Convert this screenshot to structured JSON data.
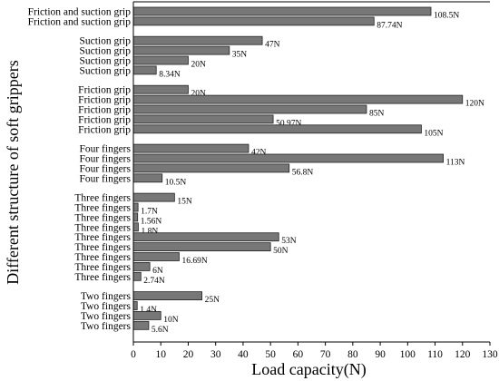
{
  "chart_data": {
    "type": "bar",
    "orientation": "horizontal",
    "xlabel": "Load capacity(N)",
    "ylabel": "Different structure of soft grippers",
    "xlim": [
      0,
      130
    ],
    "xticks": [
      0,
      10,
      20,
      30,
      40,
      50,
      60,
      70,
      80,
      90,
      100,
      110,
      120,
      130
    ],
    "grid": false,
    "bar_color": "#777777",
    "groups": [
      {
        "bars": [
          {
            "label": "Friction and suction grip",
            "value": 108.5,
            "value_label": "108.5N"
          },
          {
            "label": "Friction and suction grip",
            "value": 87.74,
            "value_label": "87.74N"
          }
        ]
      },
      {
        "bars": [
          {
            "label": "Suction grip",
            "value": 47,
            "value_label": "47N"
          },
          {
            "label": "Suction grip",
            "value": 35,
            "value_label": "35N"
          },
          {
            "label": "Suction grip",
            "value": 20,
            "value_label": "20N"
          },
          {
            "label": "Suction grip",
            "value": 8.34,
            "value_label": "8.34N"
          }
        ]
      },
      {
        "bars": [
          {
            "label": "Friction grip",
            "value": 20,
            "value_label": "20N"
          },
          {
            "label": "Friction grip",
            "value": 120,
            "value_label": "120N"
          },
          {
            "label": "Friction grip",
            "value": 85,
            "value_label": "85N"
          },
          {
            "label": "Friction grip",
            "value": 50.97,
            "value_label": "50.97N"
          },
          {
            "label": "Friction grip",
            "value": 105,
            "value_label": "105N"
          }
        ]
      },
      {
        "bars": [
          {
            "label": "Four fingers",
            "value": 42,
            "value_label": "42N"
          },
          {
            "label": "Four fingers",
            "value": 113,
            "value_label": "113N"
          },
          {
            "label": "Four fingers",
            "value": 56.8,
            "value_label": "56.8N"
          },
          {
            "label": "Four fingers",
            "value": 10.5,
            "value_label": "10.5N"
          }
        ]
      },
      {
        "bars": [
          {
            "label": "Three fingers",
            "value": 15,
            "value_label": "15N"
          },
          {
            "label": "Three fingers",
            "value": 1.7,
            "value_label": "1.7N"
          },
          {
            "label": "Three fingers",
            "value": 1.56,
            "value_label": "1.56N"
          },
          {
            "label": "Three fingers",
            "value": 1.8,
            "value_label": "1.8N"
          },
          {
            "label": "Three fingers",
            "value": 53,
            "value_label": "53N"
          },
          {
            "label": "Three fingers",
            "value": 50,
            "value_label": "50N"
          },
          {
            "label": "Three fingers",
            "value": 16.69,
            "value_label": "16.69N"
          },
          {
            "label": "Three fingers",
            "value": 6,
            "value_label": "6N"
          },
          {
            "label": "Three fingers",
            "value": 2.74,
            "value_label": "2.74N"
          }
        ]
      },
      {
        "bars": [
          {
            "label": "Two fingers",
            "value": 25,
            "value_label": "25N"
          },
          {
            "label": "Two fingers",
            "value": 1.4,
            "value_label": "1.4N"
          },
          {
            "label": "Two fingers",
            "value": 10,
            "value_label": "10N"
          },
          {
            "label": "Two fingers",
            "value": 5.6,
            "value_label": "5.6N"
          }
        ]
      }
    ]
  }
}
